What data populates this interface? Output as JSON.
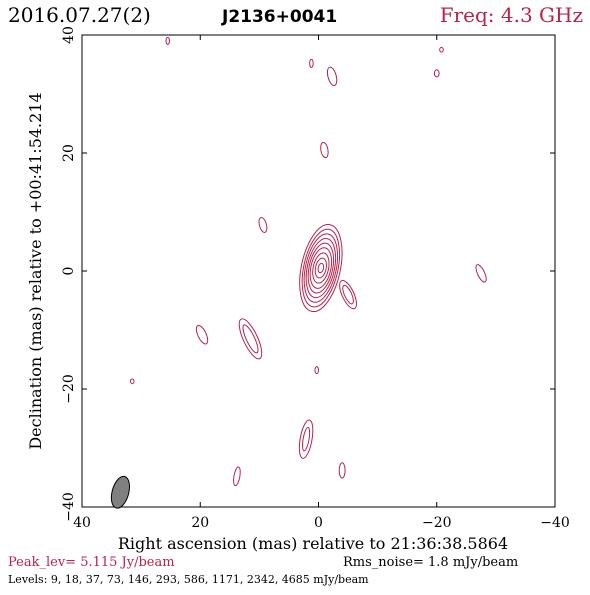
{
  "header": {
    "date": "2016.07.27(2)",
    "source": "J2136+0041",
    "freq": "Freq: 4.3 GHz"
  },
  "footer": {
    "peak": "Peak_lev=  5.115 Jy/beam",
    "rms": "Rms_noise=  1.8 mJy/beam",
    "levels": "Levels:   9,  18,  37,  73, 146, 293, 586, 1171, 2342, 4685 mJy/beam"
  },
  "colors": {
    "contour": "#b8234a",
    "accent_text": "#b8234a",
    "axis": "#000000",
    "beam_fill": "#808080"
  },
  "chart_data": {
    "type": "contour",
    "xlabel": "Right ascension (mas) relative to 21:36:38.5864",
    "ylabel": "Declination (mas) relative to +00:41:54.214",
    "xlim": [
      40,
      -40
    ],
    "ylim": [
      -40,
      40
    ],
    "x_ticks": [
      40,
      20,
      0,
      -20,
      -40
    ],
    "y_ticks": [
      -40,
      -20,
      0,
      20,
      40
    ],
    "x_tick_labels": [
      "40",
      "20",
      "0",
      "−20",
      "−40"
    ],
    "y_tick_labels": [
      "−40",
      "−20",
      "0",
      "20",
      "40"
    ],
    "levels_mjy": [
      9,
      18,
      37,
      73,
      146,
      293,
      586,
      1171,
      2342,
      4685
    ],
    "beam": {
      "x": 33.5,
      "y": -37.5,
      "major": 4.8,
      "minor": 2.0,
      "pa_deg": 15
    },
    "core": {
      "x": -0.4,
      "y": 0.5,
      "contours": [
        {
          "major": 7.5,
          "minor": 3.3,
          "pa": 12
        },
        {
          "major": 6.7,
          "minor": 2.9,
          "pa": 12
        },
        {
          "major": 5.9,
          "minor": 2.6,
          "pa": 12
        },
        {
          "major": 5.1,
          "minor": 2.3,
          "pa": 12
        },
        {
          "major": 4.3,
          "minor": 2.0,
          "pa": 12
        },
        {
          "major": 3.5,
          "minor": 1.7,
          "pa": 12
        },
        {
          "major": 2.6,
          "minor": 1.3,
          "pa": 12
        },
        {
          "major": 1.7,
          "minor": 0.9,
          "pa": 12
        },
        {
          "major": 0.8,
          "minor": 0.45,
          "pa": 12
        }
      ]
    },
    "components": [
      {
        "x": 25.5,
        "y": 39.0,
        "major": 0.6,
        "minor": 0.3,
        "pa": 0
      },
      {
        "x": 1.2,
        "y": 35.2,
        "major": 0.7,
        "minor": 0.3,
        "pa": 0
      },
      {
        "x": -2.3,
        "y": 33.0,
        "major": 1.6,
        "minor": 0.7,
        "pa": -15
      },
      {
        "x": -20.8,
        "y": 37.5,
        "major": 0.4,
        "minor": 0.3,
        "pa": 0
      },
      {
        "x": -20.0,
        "y": 33.5,
        "major": 0.6,
        "minor": 0.4,
        "pa": 0
      },
      {
        "x": -1.0,
        "y": 20.5,
        "major": 1.3,
        "minor": 0.6,
        "pa": -10
      },
      {
        "x": 9.4,
        "y": 7.8,
        "major": 1.3,
        "minor": 0.6,
        "pa": -15
      },
      {
        "x": -27.5,
        "y": -0.4,
        "major": 1.6,
        "minor": 0.6,
        "pa": -25
      },
      {
        "x": -5.0,
        "y": -4.0,
        "major": 2.6,
        "minor": 1.0,
        "pa": -25
      },
      {
        "x": -5.0,
        "y": -4.0,
        "major": 1.7,
        "minor": 0.6,
        "pa": -25
      },
      {
        "x": 19.7,
        "y": -10.8,
        "major": 1.7,
        "minor": 0.7,
        "pa": -25
      },
      {
        "x": 11.5,
        "y": -11.5,
        "major": 3.7,
        "minor": 1.2,
        "pa": -25
      },
      {
        "x": 11.5,
        "y": -11.5,
        "major": 2.6,
        "minor": 0.7,
        "pa": -25
      },
      {
        "x": 31.5,
        "y": -18.7,
        "major": 0.4,
        "minor": 0.3,
        "pa": 0
      },
      {
        "x": 0.3,
        "y": -16.8,
        "major": 0.6,
        "minor": 0.3,
        "pa": 0
      },
      {
        "x": 2.1,
        "y": -28.5,
        "major": 3.3,
        "minor": 1.0,
        "pa": 10
      },
      {
        "x": 2.1,
        "y": -28.5,
        "major": 2.0,
        "minor": 0.5,
        "pa": 10
      },
      {
        "x": 13.8,
        "y": -34.8,
        "major": 1.6,
        "minor": 0.5,
        "pa": 10
      },
      {
        "x": -4.0,
        "y": -33.8,
        "major": 1.3,
        "minor": 0.5,
        "pa": 0
      }
    ]
  }
}
